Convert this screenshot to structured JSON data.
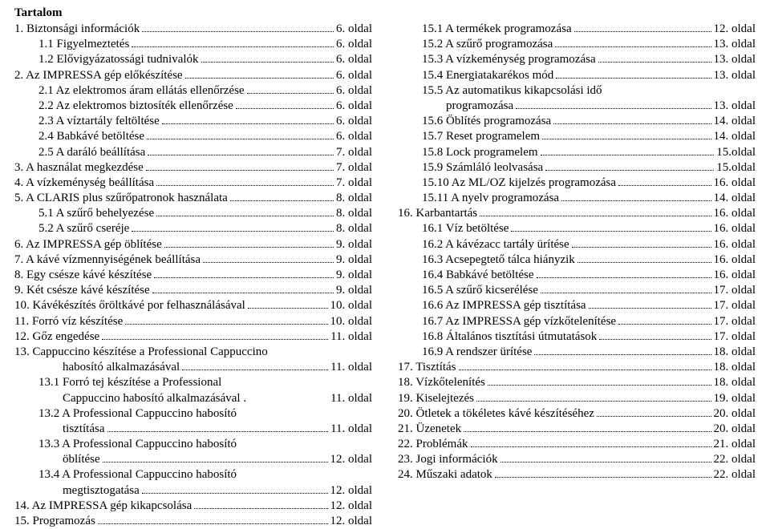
{
  "heading": "Tartalom",
  "columns": {
    "left": [
      {
        "label": "1. Biztonsági információk",
        "page": "6. oldal",
        "indent": 0
      },
      {
        "label": "1.1 Figyelmeztetés",
        "page": "6. oldal",
        "indent": 1
      },
      {
        "label": "1.2 Elővigyázatossági tudnivalók",
        "page": "6. oldal",
        "indent": 1
      },
      {
        "label": "2. Az IMPRESSA gép előkészítése",
        "page": "6. oldal",
        "indent": 0
      },
      {
        "label": "2.1 Az elektromos áram ellátás ellenőrzése",
        "page": "6. oldal",
        "indent": 1
      },
      {
        "label": "2.2 Az elektromos biztosíték ellenőrzése",
        "page": "6. oldal",
        "indent": 1
      },
      {
        "label": "2.3 A víztartály feltöltése",
        "page": "6. oldal",
        "indent": 1
      },
      {
        "label": "2.4 Babkávé betöltése",
        "page": "6. oldal",
        "indent": 1
      },
      {
        "label": "2.5 A daráló beállítása",
        "page": "7. oldal",
        "indent": 1
      },
      {
        "label": "3. A használat megkezdése",
        "page": "7. oldal",
        "indent": 0
      },
      {
        "label": "4. A vízkeménység beállítása",
        "page": "7. oldal",
        "indent": 0
      },
      {
        "label": "5. A CLARIS plus szűrőpatronok használata",
        "page": "8. oldal",
        "indent": 0
      },
      {
        "label": "5.1 A szűrő behelyezése",
        "page": "8. oldal",
        "indent": 1
      },
      {
        "label": "5.2 A szűrő cseréje",
        "page": "8. oldal",
        "indent": 1
      },
      {
        "label": "6. Az IMPRESSA gép öblítése",
        "page": "9. oldal",
        "indent": 0
      },
      {
        "label": "7. A kávé vízmennyiségének beállítása",
        "page": "9. oldal",
        "indent": 0
      },
      {
        "label": "8. Egy csésze kávé készítése",
        "page": "9. oldal",
        "indent": 0
      },
      {
        "label": "9. Két csésze kávé készítése",
        "page": "9. oldal",
        "indent": 0
      },
      {
        "label": "10. Kávékészítés őröltkávé por felhasználásával",
        "page": "10. oldal",
        "indent": 0
      },
      {
        "label": "11. Forró víz készítése",
        "page": "10. oldal",
        "indent": 0
      },
      {
        "label": "12. Gőz engedése",
        "page": "11. oldal",
        "indent": 0
      },
      {
        "label": "13. Cappuccino készítése a Professional Cappuccino",
        "page": "",
        "indent": 0,
        "noleader": true
      },
      {
        "label": "habosító alkalmazásával",
        "page": "11. oldal",
        "indent": 2
      },
      {
        "label": "13.1 Forró tej készítése a Professional",
        "page": "",
        "indent": 1,
        "noleader": true
      },
      {
        "label": "Cappuccino habosító alkalmazásával .",
        "page": "11. oldal",
        "indent": 2,
        "noleader": true
      },
      {
        "label": "13.2 A Professional Cappuccino habosító",
        "page": "",
        "indent": 1,
        "noleader": true
      },
      {
        "label": "tisztítása",
        "page": "11. oldal",
        "indent": 2
      },
      {
        "label": "13.3 A Professional Cappuccino habosító",
        "page": "",
        "indent": 1,
        "noleader": true
      },
      {
        "label": "öblítése",
        "page": "12. oldal",
        "indent": 2
      },
      {
        "label": "13.4 A Professional Cappuccino habosító",
        "page": "",
        "indent": 1,
        "noleader": true
      },
      {
        "label": "megtisztogatása",
        "page": "12. oldal",
        "indent": 2
      },
      {
        "label": "14. Az IMPRESSA gép kikapcsolása",
        "page": "12. oldal",
        "indent": 0
      },
      {
        "label": "15. Programozás",
        "page": "12. oldal",
        "indent": 0
      }
    ],
    "right": [
      {
        "label": "15.1 A termékek programozása",
        "page": "12. oldal",
        "indent": 1
      },
      {
        "label": "15.2 A szűrő programozása",
        "page": "13. oldal",
        "indent": 1
      },
      {
        "label": "15.3 A vízkeménység programozása",
        "page": "13. oldal",
        "indent": 1
      },
      {
        "label": "15.4 Energiatakarékos mód",
        "page": "13. oldal",
        "indent": 1
      },
      {
        "label": "15.5 Az automatikus kikapcsolási idő",
        "page": "",
        "indent": 1,
        "noleader": true
      },
      {
        "label": "programozása",
        "page": "13. oldal",
        "indent": 2
      },
      {
        "label": "15.6 Öblítés programozása",
        "page": "14. oldal",
        "indent": 1
      },
      {
        "label": "15.7 Reset programelem",
        "page": "14. oldal",
        "indent": 1
      },
      {
        "label": "15.8 Lock programelem",
        "page": "15.oldal",
        "indent": 1
      },
      {
        "label": "15.9 Számláló leolvasása",
        "page": "15.oldal",
        "indent": 1
      },
      {
        "label": "15.10 Az ML/OZ kijelzés programozása",
        "page": "16. oldal",
        "indent": 1
      },
      {
        "label": "15.11 A nyelv programozása",
        "page": "14. oldal",
        "indent": 1
      },
      {
        "label": "16. Karbantartás",
        "page": "16. oldal",
        "indent": 0
      },
      {
        "label": "16.1 Víz betöltése",
        "page": "16. oldal",
        "indent": 1
      },
      {
        "label": "16.2 A kávézacc tartály ürítése",
        "page": "16. oldal",
        "indent": 1
      },
      {
        "label": "16.3 Acsepegtető tálca hiányzik",
        "page": "16. oldal",
        "indent": 1
      },
      {
        "label": "16.4 Babkávé betöltése",
        "page": "16. oldal",
        "indent": 1
      },
      {
        "label": "16.5 A szűrő kicserélése",
        "page": "17. oldal",
        "indent": 1
      },
      {
        "label": "16.6 Az IMPRESSA gép tisztítása",
        "page": "17. oldal",
        "indent": 1
      },
      {
        "label": "16.7 Az IMPRESSA gép vízkőtelenítése",
        "page": "17. oldal",
        "indent": 1
      },
      {
        "label": "16.8 Általános tisztítási útmutatások",
        "page": "17. oldal",
        "indent": 1
      },
      {
        "label": "16.9 A rendszer ürítése",
        "page": "18. oldal",
        "indent": 1
      },
      {
        "label": "17. Tisztítás",
        "page": "18. oldal",
        "indent": 0
      },
      {
        "label": "18. Vízkőtelenítés",
        "page": "18. oldal",
        "indent": 0
      },
      {
        "label": "19. Kiselejtezés",
        "page": "19. oldal",
        "indent": 0
      },
      {
        "label": "20. Ötletek a tökéletes kávé készítéséhez",
        "page": "20. oldal",
        "indent": 0
      },
      {
        "label": "21. Üzenetek",
        "page": "20. oldal",
        "indent": 0
      },
      {
        "label": "22. Problémák",
        "page": "21. oldal",
        "indent": 0
      },
      {
        "label": "23. Jogi információk",
        "page": "22. oldal",
        "indent": 0
      },
      {
        "label": "24. Műszaki adatok",
        "page": "22. oldal",
        "indent": 0
      }
    ]
  }
}
